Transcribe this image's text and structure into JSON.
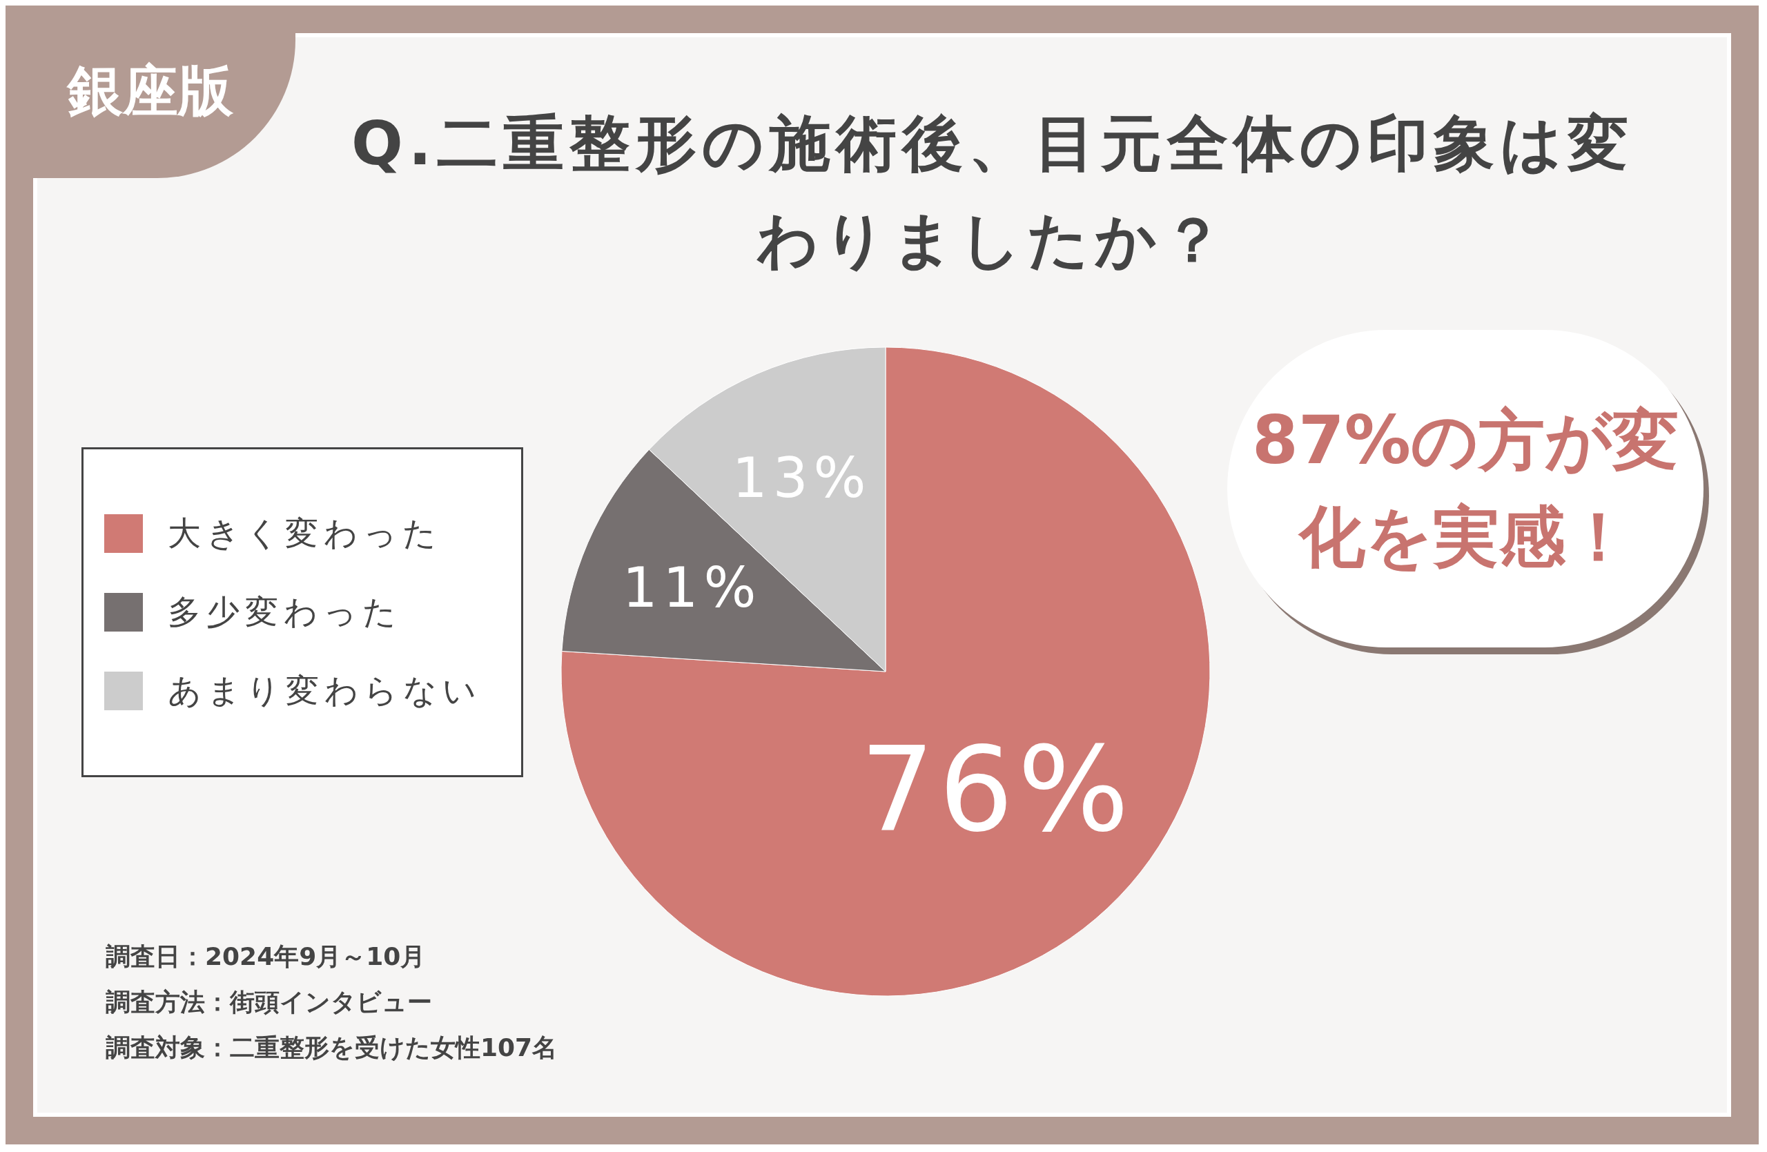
{
  "chart_data": {
    "type": "pie",
    "title": "Q.二重整形の施術後、目元全体の印象は変わりましたか？",
    "categories": [
      "大きく変わった",
      "多少変わった",
      "あまり変わらない"
    ],
    "values": [
      76,
      11,
      13
    ],
    "colors": [
      "#d07a74",
      "#767070",
      "#cccccc"
    ],
    "value_labels": [
      "76%",
      "11%",
      "13%"
    ],
    "legend": "left",
    "annotations": [
      "銀座版",
      "87%の方が変化を実感！",
      "調査日：2024年9月～10月",
      "調査方法：街頭インタビュー",
      "調査対象：二重整形を受けた女性107名"
    ]
  }
}
